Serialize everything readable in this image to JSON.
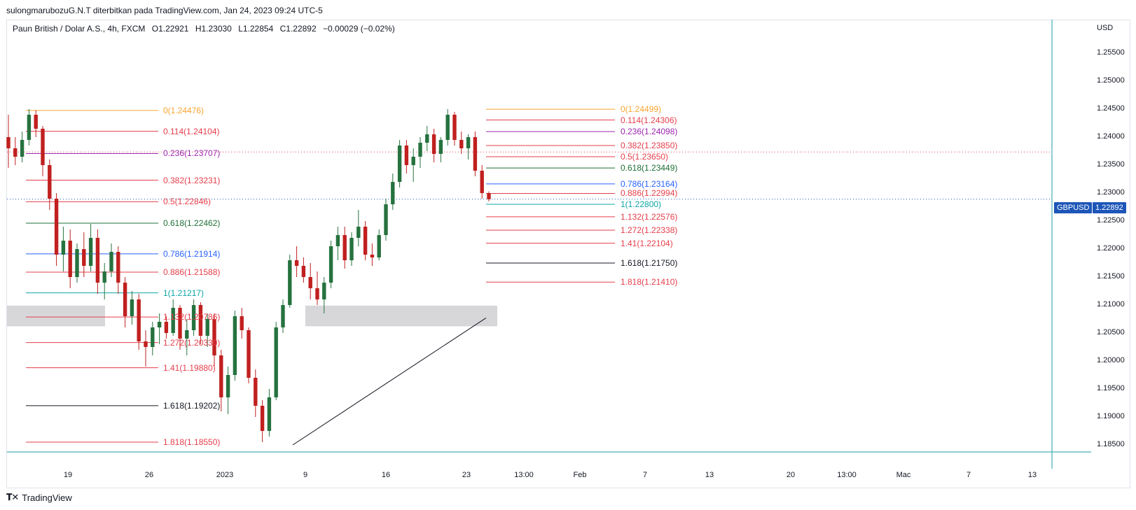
{
  "attribution": "sulongmarubozuG.N.T diterbitkan pada TradingView.com, Jan 24, 2023 09:24 UTC-5",
  "legend": {
    "symbol": "Paun British / Dolar A.S., 4h, FXCM",
    "open": "O1.22921",
    "high": "H1.23030",
    "low": "L1.22854",
    "close": "C1.22892",
    "change": "−0.00029 (−0.02%)"
  },
  "currency": "USD",
  "brand": "TradingView",
  "price_badge": {
    "symbol": "GBPUSD",
    "price": "1.22892"
  },
  "colors": {
    "up": "#26723f",
    "down": "#c0201f",
    "orange": "#f7a531",
    "red": "#e53e4a",
    "purple": "#9c27b0",
    "green": "#1f6f37",
    "blue": "#2962ff",
    "teal": "#0ea5a5",
    "black": "#131722",
    "zone": "#d3d3d6",
    "badge": "#1d56b8"
  },
  "chart_data": {
    "type": "candlestick",
    "title": "Paun British / Dolar A.S., 4h, FXCM",
    "ylabel": "USD",
    "ylim": [
      1.1825,
      1.2595
    ],
    "y_ticks": [
      "1.25500",
      "1.25000",
      "1.24500",
      "1.24000",
      "1.23500",
      "1.23000",
      "1.22500",
      "1.22000",
      "1.21500",
      "1.21000",
      "1.20500",
      "1.20000",
      "1.19500",
      "1.19000",
      "1.18500"
    ],
    "x_ticks": [
      "19",
      "26",
      "2023",
      "9",
      "16",
      "23",
      "13:00",
      "Feb",
      "7",
      "13",
      "20",
      "13:00",
      "Mac",
      "7",
      "13"
    ],
    "current_price": 1.22892,
    "fib_left": [
      {
        "ratio": "0",
        "price": 1.24476,
        "color": "orange"
      },
      {
        "ratio": "0.114",
        "price": 1.24104,
        "color": "red"
      },
      {
        "ratio": "0.236",
        "price": 1.23707,
        "color": "purple"
      },
      {
        "ratio": "0.382",
        "price": 1.23231,
        "color": "red"
      },
      {
        "ratio": "0.5",
        "price": 1.22846,
        "color": "red"
      },
      {
        "ratio": "0.618",
        "price": 1.22462,
        "color": "green"
      },
      {
        "ratio": "0.786",
        "price": 1.21914,
        "color": "blue"
      },
      {
        "ratio": "0.886",
        "price": 1.21588,
        "color": "red"
      },
      {
        "ratio": "1",
        "price": 1.21217,
        "color": "teal"
      },
      {
        "ratio": "1.132",
        "price": 1.20786,
        "color": "red"
      },
      {
        "ratio": "1.272",
        "price": 1.2033,
        "color": "red"
      },
      {
        "ratio": "1.41",
        "price": 1.1988,
        "color": "red"
      },
      {
        "ratio": "1.618",
        "price": 1.19202,
        "color": "black"
      },
      {
        "ratio": "1.818",
        "price": 1.1855,
        "color": "red"
      }
    ],
    "fib_right": [
      {
        "ratio": "0",
        "price": 1.24499,
        "color": "orange"
      },
      {
        "ratio": "0.114",
        "price": 1.24306,
        "color": "red"
      },
      {
        "ratio": "0.236",
        "price": 1.24098,
        "color": "purple"
      },
      {
        "ratio": "0.382",
        "price": 1.2385,
        "color": "red"
      },
      {
        "ratio": "0.5",
        "price": 1.2365,
        "color": "red"
      },
      {
        "ratio": "0.618",
        "price": 1.23449,
        "color": "green"
      },
      {
        "ratio": "0.786",
        "price": 1.23164,
        "color": "blue"
      },
      {
        "ratio": "0.886",
        "price": 1.22994,
        "color": "red"
      },
      {
        "ratio": "1",
        "price": 1.228,
        "color": "teal"
      },
      {
        "ratio": "1.132",
        "price": 1.22576,
        "color": "red"
      },
      {
        "ratio": "1.272",
        "price": 1.22338,
        "color": "red"
      },
      {
        "ratio": "1.41",
        "price": 1.22104,
        "color": "red"
      },
      {
        "ratio": "1.618",
        "price": 1.2175,
        "color": "black"
      },
      {
        "ratio": "1.818",
        "price": 1.2141,
        "color": "red"
      }
    ],
    "candles": [
      [
        1.24,
        1.244,
        1.2345,
        1.238
      ],
      [
        1.238,
        1.24,
        1.235,
        1.2365
      ],
      [
        1.2365,
        1.241,
        1.2355,
        1.2395
      ],
      [
        1.2395,
        1.245,
        1.2385,
        1.244
      ],
      [
        1.244,
        1.2448,
        1.24,
        1.2415
      ],
      [
        1.2415,
        1.242,
        1.233,
        1.235
      ],
      [
        1.235,
        1.236,
        1.227,
        1.229
      ],
      [
        1.229,
        1.23,
        1.217,
        1.219
      ],
      [
        1.219,
        1.224,
        1.216,
        1.2215
      ],
      [
        1.2215,
        1.2235,
        1.213,
        1.215
      ],
      [
        1.215,
        1.221,
        1.214,
        1.22
      ],
      [
        1.22,
        1.223,
        1.215,
        1.217
      ],
      [
        1.217,
        1.2245,
        1.216,
        1.222
      ],
      [
        1.222,
        1.2235,
        1.212,
        1.214
      ],
      [
        1.214,
        1.2175,
        1.211,
        1.216
      ],
      [
        1.216,
        1.221,
        1.215,
        1.2195
      ],
      [
        1.2195,
        1.2205,
        1.212,
        1.214
      ],
      [
        1.214,
        1.215,
        1.206,
        1.208
      ],
      [
        1.208,
        1.2125,
        1.2065,
        1.211
      ],
      [
        1.211,
        1.212,
        1.202,
        1.2035
      ],
      [
        1.2035,
        1.2055,
        1.199,
        1.2025
      ],
      [
        1.2025,
        1.207,
        1.201,
        1.206
      ],
      [
        1.206,
        1.2085,
        1.203,
        1.207
      ],
      [
        1.207,
        1.208,
        1.204,
        1.205
      ],
      [
        1.205,
        1.211,
        1.2045,
        1.2095
      ],
      [
        1.2095,
        1.21,
        1.202,
        1.204
      ],
      [
        1.204,
        1.2075,
        1.201,
        1.2055
      ],
      [
        1.2055,
        1.211,
        1.2045,
        1.21
      ],
      [
        1.21,
        1.2105,
        1.203,
        1.2045
      ],
      [
        1.2045,
        1.2085,
        1.2025,
        1.2075
      ],
      [
        1.2075,
        1.2085,
        1.199,
        1.201
      ],
      [
        1.201,
        1.202,
        1.191,
        1.1935
      ],
      [
        1.1935,
        1.199,
        1.1905,
        1.1975
      ],
      [
        1.1975,
        1.209,
        1.1965,
        1.208
      ],
      [
        1.208,
        1.2095,
        1.204,
        1.2055
      ],
      [
        1.2055,
        1.206,
        1.196,
        1.197
      ],
      [
        1.197,
        1.1985,
        1.19,
        1.192
      ],
      [
        1.192,
        1.193,
        1.1855,
        1.1875
      ],
      [
        1.1875,
        1.195,
        1.1865,
        1.1935
      ],
      [
        1.1935,
        1.207,
        1.193,
        1.206
      ],
      [
        1.206,
        1.211,
        1.205,
        1.21
      ],
      [
        1.21,
        1.219,
        1.2095,
        1.218
      ],
      [
        1.218,
        1.2205,
        1.215,
        1.217
      ],
      [
        1.217,
        1.2185,
        1.214,
        1.215
      ],
      [
        1.215,
        1.2175,
        1.211,
        1.213
      ],
      [
        1.213,
        1.216,
        1.21,
        1.211
      ],
      [
        1.211,
        1.215,
        1.2085,
        1.214
      ],
      [
        1.214,
        1.2215,
        1.213,
        1.2205
      ],
      [
        1.2205,
        1.224,
        1.218,
        1.2225
      ],
      [
        1.2225,
        1.224,
        1.2165,
        1.218
      ],
      [
        1.218,
        1.223,
        1.217,
        1.222
      ],
      [
        1.222,
        1.227,
        1.2205,
        1.224
      ],
      [
        1.224,
        1.225,
        1.218,
        1.219
      ],
      [
        1.219,
        1.221,
        1.217,
        1.2185
      ],
      [
        1.2185,
        1.2235,
        1.218,
        1.2225
      ],
      [
        1.2225,
        1.229,
        1.2215,
        1.228
      ],
      [
        1.228,
        1.2335,
        1.227,
        1.232
      ],
      [
        1.232,
        1.2395,
        1.231,
        1.2385
      ],
      [
        1.2385,
        1.2395,
        1.2335,
        1.235
      ],
      [
        1.235,
        1.238,
        1.232,
        1.2365
      ],
      [
        1.2365,
        1.24,
        1.2345,
        1.239
      ],
      [
        1.239,
        1.242,
        1.2375,
        1.2405
      ],
      [
        1.2405,
        1.2415,
        1.2355,
        1.237
      ],
      [
        1.237,
        1.24,
        1.2355,
        1.2395
      ],
      [
        1.2395,
        1.245,
        1.2385,
        1.244
      ],
      [
        1.244,
        1.2445,
        1.2385,
        1.2395
      ],
      [
        1.2395,
        1.241,
        1.237,
        1.238
      ],
      [
        1.238,
        1.2405,
        1.236,
        1.24
      ],
      [
        1.24,
        1.241,
        1.233,
        1.234
      ],
      [
        1.234,
        1.235,
        1.229,
        1.23
      ],
      [
        1.23,
        1.2303,
        1.2285,
        1.2289
      ]
    ],
    "support_zones": [
      {
        "from": 1.2077,
        "to": 1.2099
      },
      {
        "from": 1.2077,
        "to": 1.2099
      }
    ]
  }
}
